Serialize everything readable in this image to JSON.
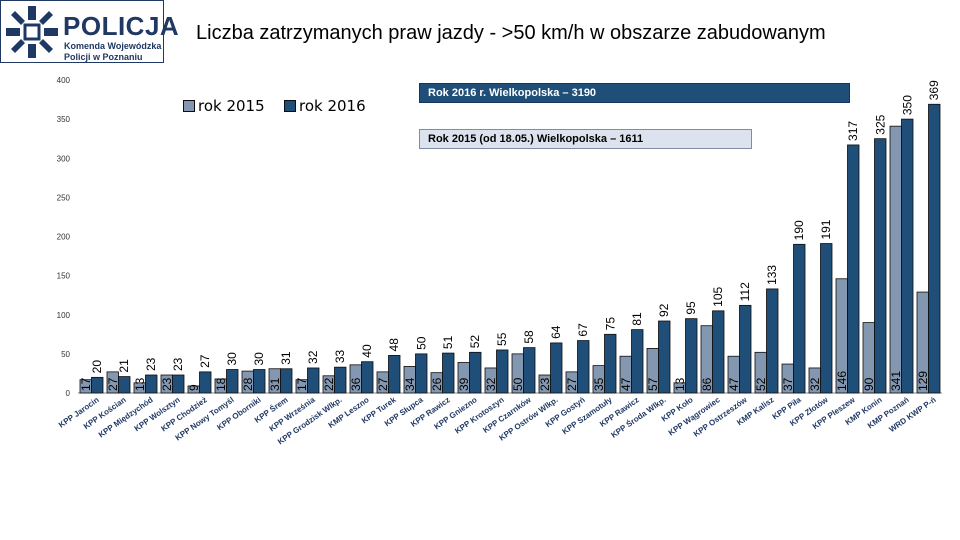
{
  "logo": {
    "name": "POLICJA",
    "subtitle_line1": "Komenda Wojewódzka",
    "subtitle_line2": "Policji w Poznaniu"
  },
  "title": "Liczba zatrzymanych praw jazdy - >50 km/h w obszarze zabudowanym",
  "annotations": {
    "y2016": "Rok 2016 r. Wielkopolska – 3190",
    "y2015": "Rok 2015 (od 18.05.) Wielkopolska – 1611"
  },
  "colors": {
    "series_2015": "#8497b0",
    "series_2016": "#1f4e79",
    "bar_outline": "#0d0d0d"
  },
  "chart_data": {
    "type": "bar",
    "title": "Liczba zatrzymanych praw jazdy - >50 km/h w obszarze zabudowanym",
    "xlabel": "",
    "ylabel": "",
    "ylim": [
      0,
      400
    ],
    "yticks": [
      0,
      50,
      100,
      150,
      200,
      250,
      300,
      350,
      400
    ],
    "grid": false,
    "legend": "top-left",
    "categories": [
      "KPP Jarocin",
      "KPP Kościan",
      "KPP Międzychód",
      "KPP Wolsztyn",
      "KPP Chodzież",
      "KPP Nowy Tomyśl",
      "KPP Oborniki",
      "KPP Śrem",
      "KPP Września",
      "KPP Grodzisk Wlkp.",
      "KMP Leszno",
      "KPP Turek",
      "KPP Słupca",
      "KPP Rawicz",
      "KPP Gniezno",
      "KPP Krotoszyn",
      "KPP Czarnków",
      "KPP Ostrów Wlkp.",
      "KPP Gostyń",
      "KPP Szamotuły",
      "KPP Rawicz",
      "KPP Środa Wlkp.",
      "KPP Koło",
      "KPP Wągrowiec",
      "KPP Ostrzeszów",
      "KMP Kalisz",
      "KPP Piła",
      "KPP Złotów",
      "KPP Pleszew",
      "KMP Konin",
      "KMP Poznań",
      "WRD KWP P-ń"
    ],
    "series": [
      {
        "name": "rok 2015",
        "values": [
          17,
          27,
          13,
          23,
          9,
          18,
          28,
          31,
          17,
          22,
          36,
          27,
          34,
          26,
          39,
          32,
          50,
          23,
          27,
          35,
          47,
          57,
          13,
          86,
          47,
          52,
          37,
          32,
          146,
          90,
          341,
          129
        ]
      },
      {
        "name": "rok 2016",
        "values": [
          20,
          21,
          23,
          23,
          27,
          30,
          30,
          31,
          32,
          33,
          40,
          48,
          50,
          51,
          52,
          55,
          58,
          64,
          67,
          75,
          81,
          92,
          95,
          105,
          112,
          133,
          190,
          191,
          317,
          325,
          350,
          369
        ]
      }
    ]
  }
}
